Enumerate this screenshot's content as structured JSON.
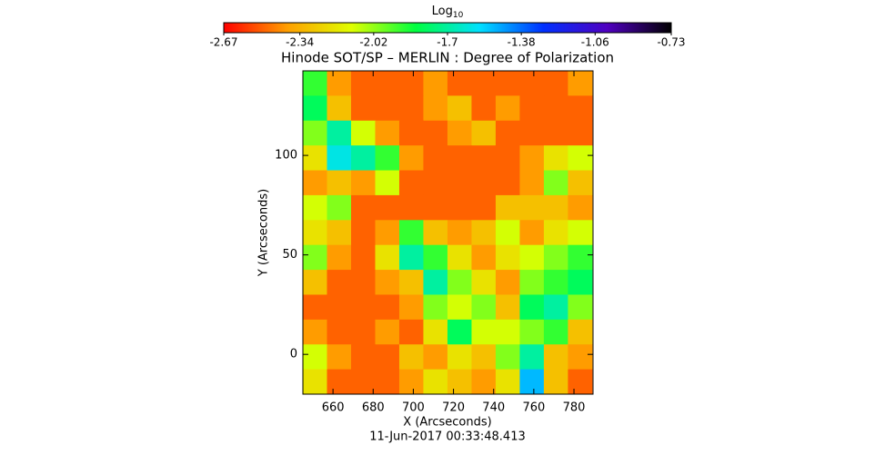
{
  "chart_data": {
    "type": "heatmap",
    "title": "Hinode SOT/SP – MERLIN : Degree of Polarization",
    "subtitle": "11-Jun-2017 00:33:48.413",
    "x_label": "X (Arcseconds)",
    "y_label": "Y (Arcseconds)",
    "colorbar": {
      "label": "Log",
      "label_subscript": "10",
      "lim": [
        -2.67,
        -0.73
      ],
      "ticks": [
        -2.67,
        -2.34,
        -2.02,
        -1.7,
        -1.38,
        -1.06,
        -0.73
      ],
      "colormap": [
        "#ff0000",
        "#ffa000",
        "#e0ff00",
        "#00ff40",
        "#00e0ff",
        "#0030ff",
        "#5000c0",
        "#000000"
      ]
    },
    "xlim": [
      645,
      789.5
    ],
    "ylim": [
      -20,
      142.5
    ],
    "xticks": [
      660,
      680,
      700,
      720,
      740,
      760,
      780
    ],
    "yticks": [
      0,
      50,
      100
    ],
    "x": [
      651,
      663,
      675,
      687,
      699,
      711,
      723,
      735,
      747,
      759,
      771,
      783
    ],
    "y": [
      136.25,
      123.75,
      111.25,
      98.75,
      86.25,
      73.75,
      61.25,
      48.75,
      36.25,
      23.75,
      11.25,
      -1.25,
      -13.75
    ],
    "z": [
      [
        -1.9,
        -2.4,
        -2.5,
        -2.5,
        -2.5,
        -2.4,
        -2.5,
        -2.5,
        -2.5,
        -2.5,
        -2.5,
        -2.4
      ],
      [
        -1.8,
        -2.3,
        -2.5,
        -2.5,
        -2.5,
        -2.4,
        -2.3,
        -2.5,
        -2.4,
        -2.5,
        -2.5,
        -2.5
      ],
      [
        -2.0,
        -1.7,
        -2.1,
        -2.4,
        -2.5,
        -2.5,
        -2.4,
        -2.3,
        -2.5,
        -2.5,
        -2.5,
        -2.5
      ],
      [
        -2.2,
        -1.6,
        -1.7,
        -1.9,
        -2.4,
        -2.5,
        -2.5,
        -2.5,
        -2.5,
        -2.4,
        -2.2,
        -2.1
      ],
      [
        -2.4,
        -2.3,
        -2.4,
        -2.1,
        -2.5,
        -2.5,
        -2.5,
        -2.5,
        -2.5,
        -2.4,
        -2.0,
        -2.3
      ],
      [
        -2.1,
        -2.0,
        -2.5,
        -2.5,
        -2.5,
        -2.5,
        -2.5,
        -2.5,
        -2.3,
        -2.3,
        -2.3,
        -2.4
      ],
      [
        -2.2,
        -2.3,
        -2.5,
        -2.4,
        -1.9,
        -2.3,
        -2.4,
        -2.3,
        -2.1,
        -2.4,
        -2.2,
        -2.1
      ],
      [
        -2.0,
        -2.4,
        -2.5,
        -2.2,
        -1.7,
        -1.9,
        -2.2,
        -2.4,
        -2.2,
        -2.1,
        -2.0,
        -1.9
      ],
      [
        -2.3,
        -2.5,
        -2.5,
        -2.4,
        -2.3,
        -1.7,
        -2.0,
        -2.2,
        -2.4,
        -2.0,
        -1.9,
        -1.8
      ],
      [
        -2.5,
        -2.5,
        -2.5,
        -2.5,
        -2.4,
        -2.0,
        -2.1,
        -2.0,
        -2.3,
        -1.8,
        -1.7,
        -2.0
      ],
      [
        -2.4,
        -2.5,
        -2.5,
        -2.4,
        -2.5,
        -2.2,
        -1.8,
        -2.1,
        -2.1,
        -2.0,
        -1.9,
        -2.3
      ],
      [
        -2.1,
        -2.4,
        -2.5,
        -2.5,
        -2.3,
        -2.4,
        -2.2,
        -2.3,
        -2.0,
        -1.7,
        -2.3,
        -2.4
      ],
      [
        -2.2,
        -2.5,
        -2.5,
        -2.5,
        -2.4,
        -2.2,
        -2.3,
        -2.4,
        -2.2,
        -1.5,
        -2.3,
        -2.5
      ]
    ]
  }
}
